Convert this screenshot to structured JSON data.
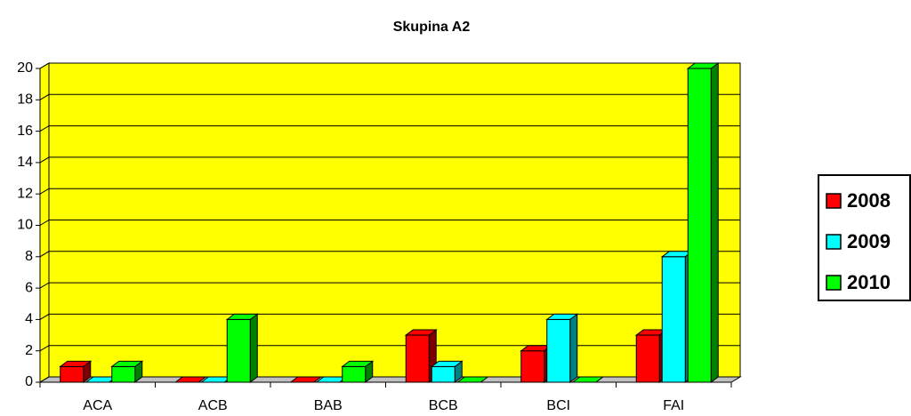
{
  "chart_data": {
    "type": "bar3d",
    "title": "Skupina A2",
    "categories": [
      "ACA",
      "ACB",
      "BAB",
      "BCB",
      "BCI",
      "FAI"
    ],
    "series": [
      {
        "name": "2008",
        "color": "#ff0000",
        "values": [
          1,
          0,
          0,
          3,
          2,
          3
        ]
      },
      {
        "name": "2009",
        "color": "#00ffff",
        "values": [
          0,
          0,
          0,
          1,
          4,
          8
        ]
      },
      {
        "name": "2010",
        "color": "#00ff00",
        "values": [
          1,
          4,
          1,
          0,
          0,
          20
        ]
      }
    ],
    "ylim": [
      0,
      20
    ],
    "yticks": [
      0,
      2,
      4,
      6,
      8,
      10,
      12,
      14,
      16,
      18,
      20
    ],
    "grid": true,
    "plot_background": "#ffff00",
    "legend": "right"
  }
}
